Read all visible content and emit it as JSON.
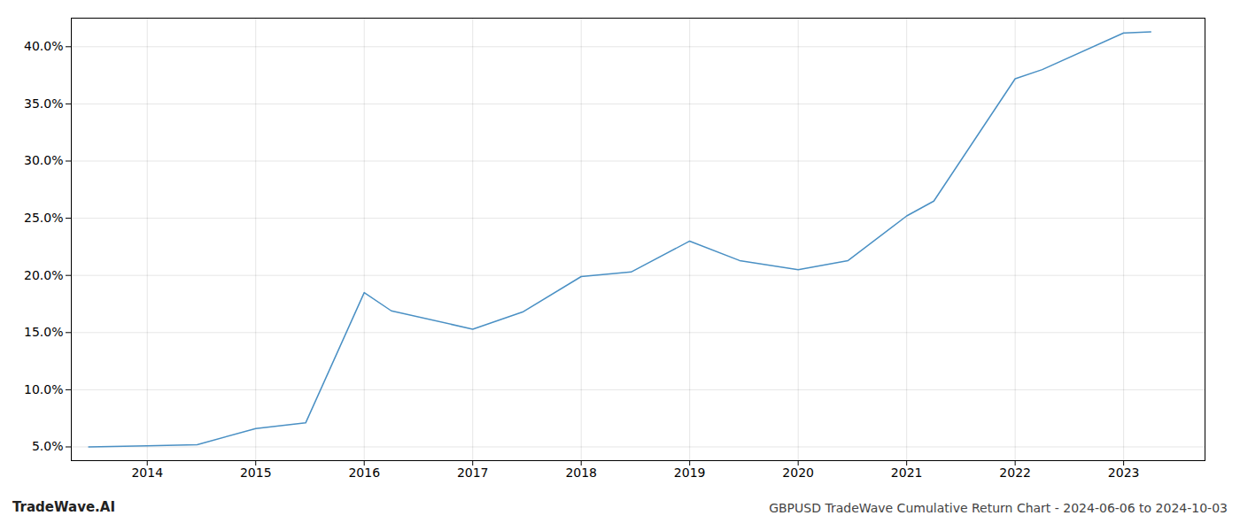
{
  "chart_data": {
    "type": "line",
    "title": "GBPUSD TradeWave Cumulative Return Chart - 2024-06-06 to 2024-10-03",
    "annotations": [
      "TradeWave.AI"
    ],
    "x": [
      2013.46,
      2014.0,
      2014.46,
      2015.0,
      2015.46,
      2016.0,
      2016.25,
      2017.0,
      2017.46,
      2018.0,
      2018.46,
      2019.0,
      2019.46,
      2020.0,
      2020.46,
      2021.0,
      2021.25,
      2022.0,
      2022.25,
      2023.0,
      2023.25
    ],
    "values": [
      5.0,
      5.1,
      5.2,
      6.6,
      7.1,
      18.5,
      16.9,
      15.3,
      16.8,
      19.9,
      20.3,
      23.0,
      21.3,
      20.5,
      21.3,
      25.2,
      26.5,
      37.2,
      38.0,
      41.2,
      41.3
    ],
    "color": "#4a90c4",
    "xlim": [
      2013.3,
      2023.75
    ],
    "xticks": [
      2014,
      2015,
      2016,
      2017,
      2018,
      2019,
      2020,
      2021,
      2022,
      2023
    ],
    "ylim": [
      3.8,
      42.5
    ],
    "yticks": [
      {
        "value": 5.0,
        "label": "5.0%"
      },
      {
        "value": 10.0,
        "label": "10.0%"
      },
      {
        "value": 15.0,
        "label": "15.0%"
      },
      {
        "value": 20.0,
        "label": "20.0%"
      },
      {
        "value": 25.0,
        "label": "25.0%"
      },
      {
        "value": 30.0,
        "label": "30.0%"
      },
      {
        "value": 35.0,
        "label": "35.0%"
      },
      {
        "value": 40.0,
        "label": "40.0%"
      }
    ],
    "grid": true
  }
}
